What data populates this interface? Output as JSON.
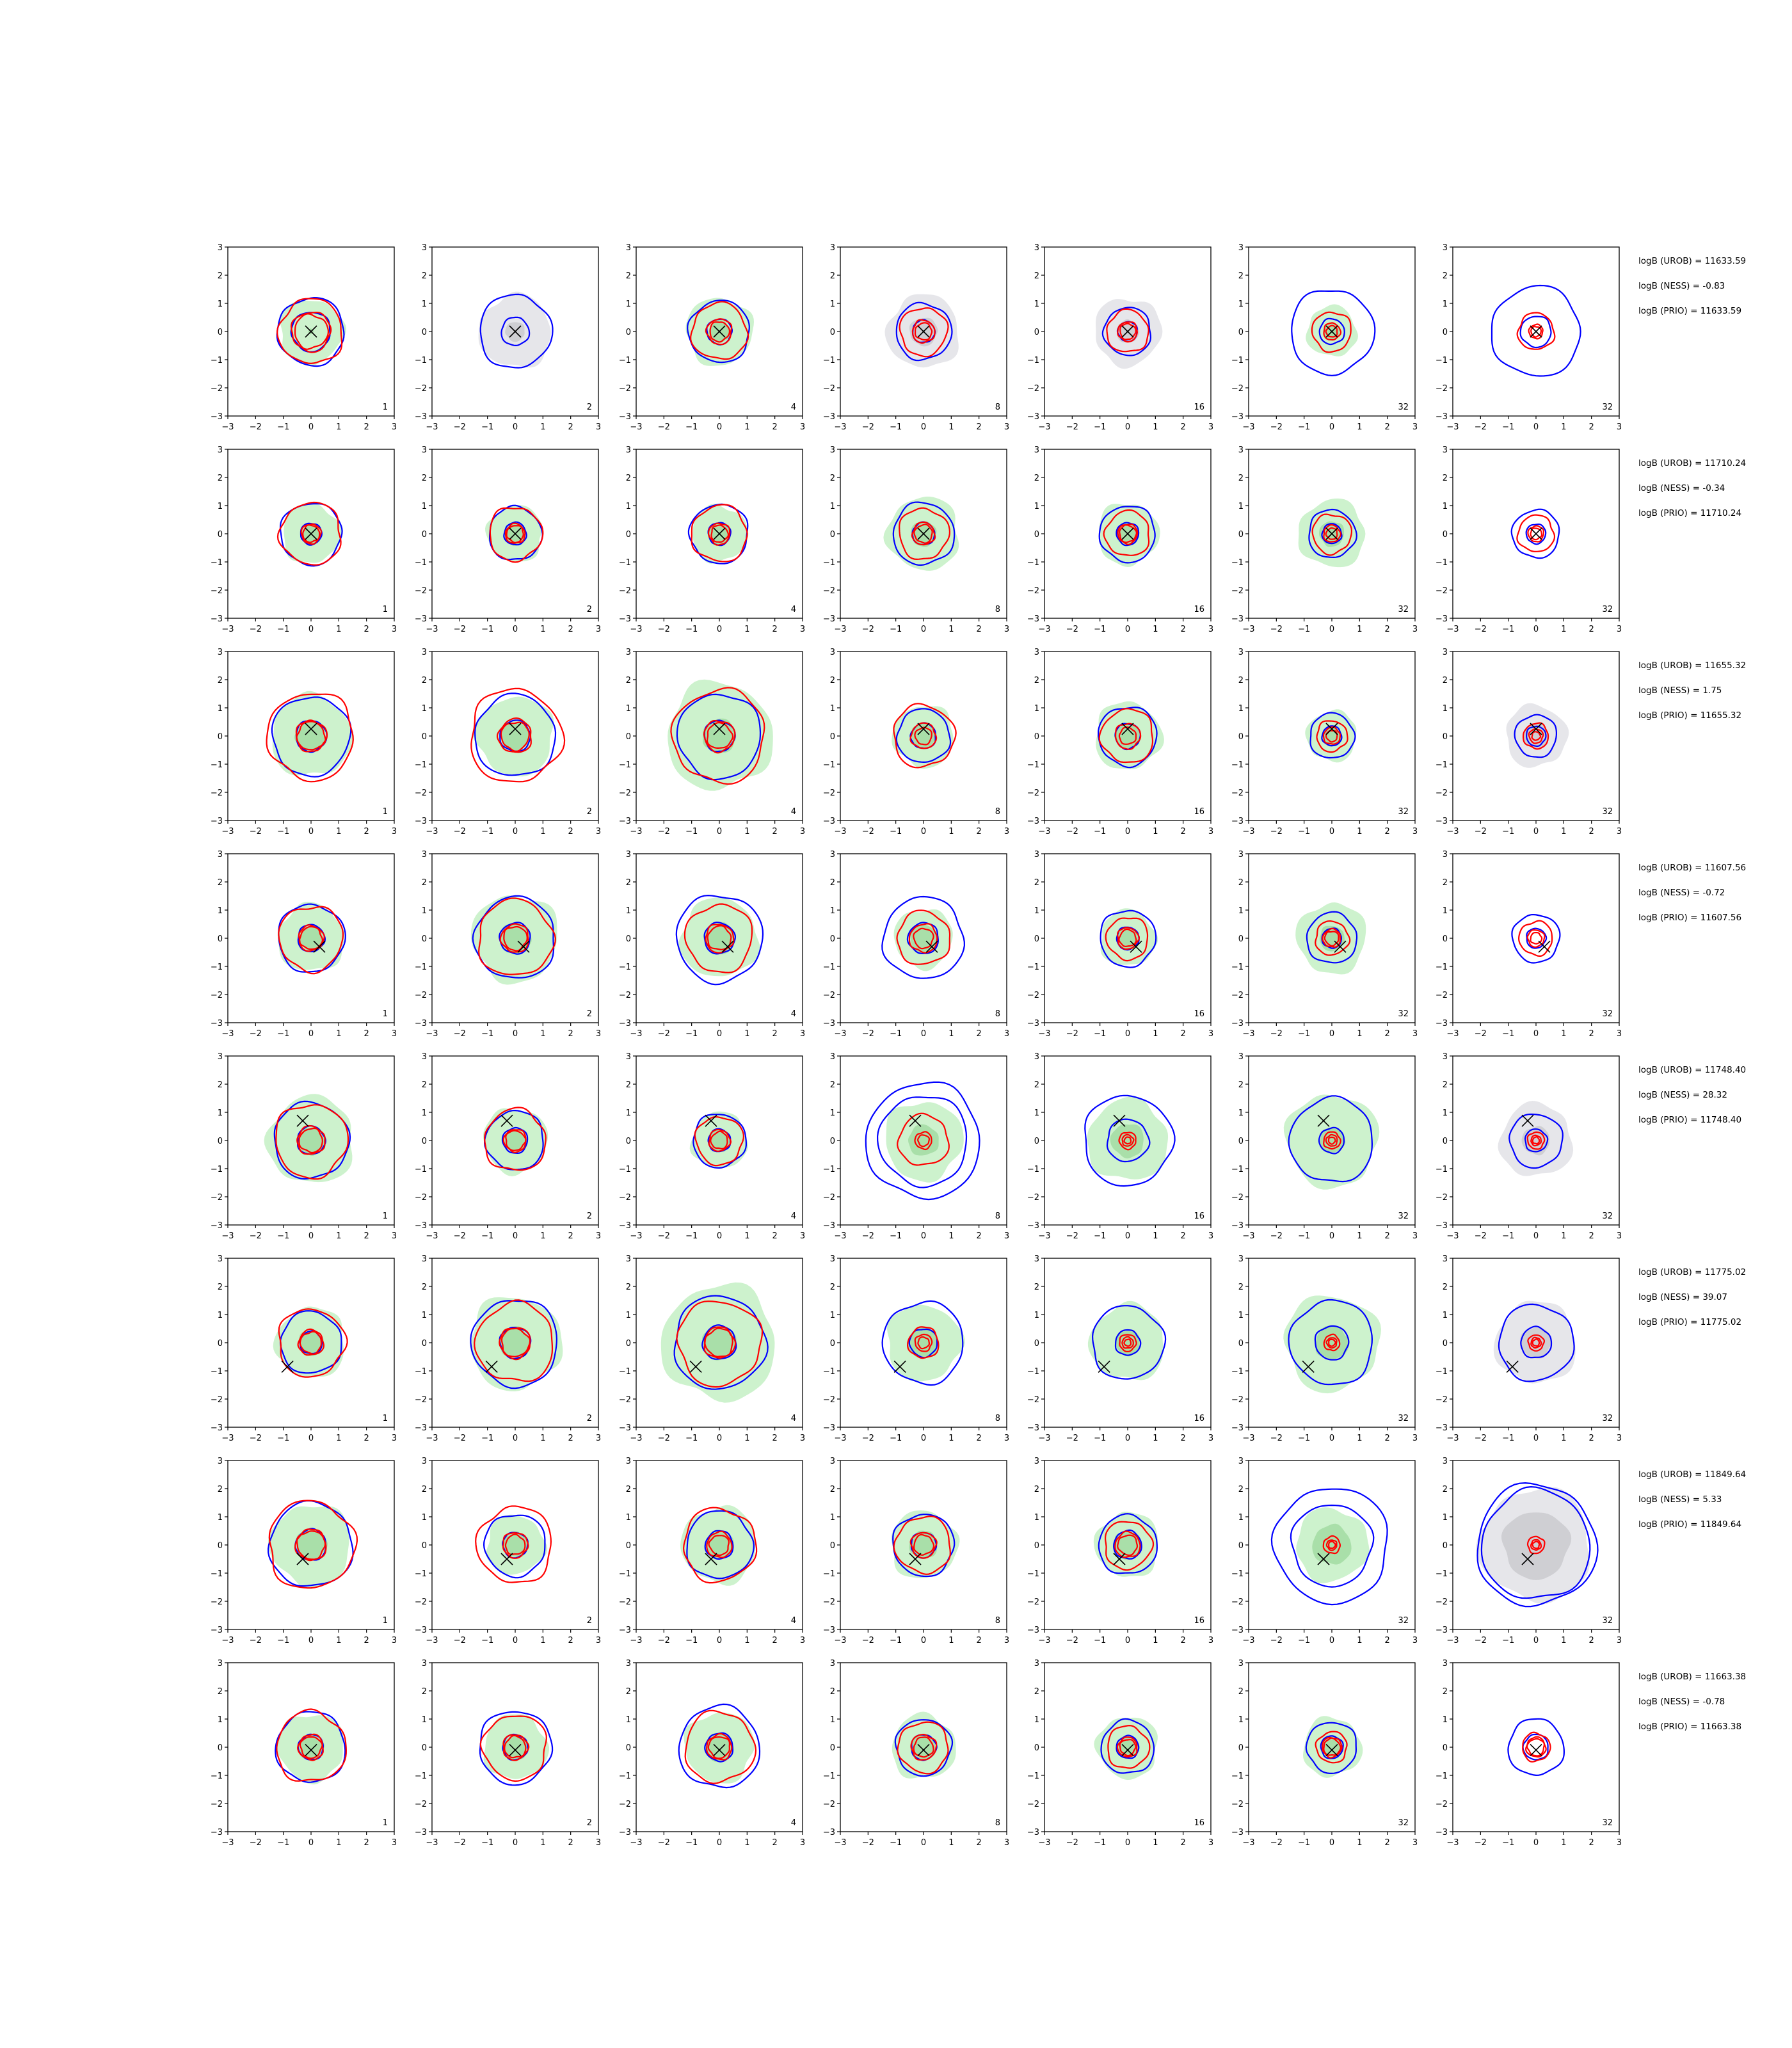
{
  "figure": {
    "columns": [
      "1",
      "2",
      "4",
      "8",
      "16",
      "32",
      "32"
    ]
  },
  "chart_data": {
    "type": "contour-grid",
    "rows": 8,
    "cols": 7,
    "xlim": [
      -3,
      3
    ],
    "ylim": [
      -3,
      3
    ],
    "ticks": [
      "−3",
      "−2",
      "−1",
      "0",
      "1",
      "2",
      "3"
    ],
    "tick_values": [
      -3,
      -2,
      -1,
      0,
      1,
      2,
      3
    ],
    "colors": {
      "blue": "#0000ff",
      "red": "#ff0000",
      "green_fill": "#cdf2cd",
      "green_core": "#a9dfa9",
      "gray_fill": "#e6e6ea",
      "gray_core": "#cfcfd3",
      "marker": "#000000"
    },
    "column_labels": [
      "1",
      "2",
      "4",
      "8",
      "16",
      "32",
      "32"
    ],
    "rows_data": [
      {
        "marker": [
          0,
          0
        ],
        "annotations": [
          "logB (UROB) = 11633.59",
          "logB (NESS) = -0.83",
          "logB (PRIO) = 11633.59"
        ],
        "panels": [
          {
            "fill": [
              1.15,
              0.1,
              0
            ],
            "blue": [
              1.2,
              0.7
            ],
            "red": [
              1.15,
              0.7,
              0.6
            ]
          },
          {
            "fill": [
              1.3,
              0.35,
              0.4
            ],
            "blue": [
              1.3,
              0.5
            ],
            "red": []
          },
          {
            "fill": [
              1.2,
              0.4,
              0
            ],
            "blue": [
              1.1,
              0.45
            ],
            "red": [
              1.0,
              0.45,
              0.35
            ]
          },
          {
            "fill": [
              1.3,
              0.5,
              0.1
            ],
            "blue": [
              1.0,
              0.4
            ],
            "red": [
              0.85,
              0.4,
              0.3
            ]
          },
          {
            "fill": [
              1.2,
              0.4,
              0.1
            ],
            "blue": [
              0.85,
              0.35
            ],
            "red": [
              0.75,
              0.35,
              0.28
            ]
          },
          {
            "fill": [
              0.9,
              0.3,
              0
            ],
            "blue": [
              1.5,
              0.45
            ],
            "red": [
              0.7,
              0.3,
              0.2
            ]
          },
          {
            "fill": [
              0,
              0,
              0
            ],
            "blue": [
              1.6,
              0.55
            ],
            "red": [
              0.65,
              0.25,
              0.18
            ]
          }
        ]
      },
      {
        "marker": [
          0,
          0
        ],
        "annotations": [
          "logB (UROB) = 11710.24",
          "logB (NESS) = -0.34",
          "logB (PRIO) = 11710.24"
        ],
        "panels": [
          {
            "fill": [
              1.05,
              0.35,
              0
            ],
            "blue": [
              1.1,
              0.38
            ],
            "red": [
              1.1,
              0.35,
              0.3
            ]
          },
          {
            "fill": [
              1.0,
              0.4,
              0
            ],
            "blue": [
              0.95,
              0.4
            ],
            "red": [
              0.95,
              0.35,
              0.3
            ]
          },
          {
            "fill": [
              1.0,
              0.4,
              0
            ],
            "blue": [
              1.05,
              0.4
            ],
            "red": [
              1.0,
              0.38,
              0.3
            ]
          },
          {
            "fill": [
              1.3,
              0.45,
              0
            ],
            "blue": [
              1.1,
              0.4
            ],
            "red": [
              0.9,
              0.4,
              0.32
            ]
          },
          {
            "fill": [
              1.1,
              0.4,
              0
            ],
            "blue": [
              1.0,
              0.4
            ],
            "red": [
              0.8,
              0.35,
              0.3
            ]
          },
          {
            "fill": [
              1.2,
              0.45,
              0
            ],
            "blue": [
              0.85,
              0.35
            ],
            "red": [
              0.7,
              0.3,
              0.2
            ]
          },
          {
            "fill": [
              0,
              0,
              0
            ],
            "blue": [
              0.85,
              0.35
            ],
            "red": [
              0.65,
              0.28,
              0.2
            ]
          }
        ]
      },
      {
        "marker": [
          0,
          0.25
        ],
        "annotations": [
          "logB (UROB) = 11655.32",
          "logB (NESS) = 1.75",
          "logB (PRIO) = 11655.32"
        ],
        "panels": [
          {
            "fill": [
              1.45,
              0.55,
              0
            ],
            "blue": [
              1.4,
              0.55
            ],
            "red": [
              1.55,
              0.55,
              0.5
            ]
          },
          {
            "fill": [
              1.4,
              0.5,
              0
            ],
            "blue": [
              1.45,
              0.55
            ],
            "red": [
              1.65,
              0.6,
              0.5
            ]
          },
          {
            "fill": [
              1.9,
              0.6,
              0
            ],
            "blue": [
              1.5,
              0.55
            ],
            "red": [
              1.65,
              0.55,
              0.45
            ]
          },
          {
            "fill": [
              1.1,
              0.45,
              0
            ],
            "blue": [
              0.95,
              0.45
            ],
            "red": [
              1.1,
              0.45,
              0.3
            ]
          },
          {
            "fill": [
              1.2,
              0.45,
              0
            ],
            "blue": [
              1.05,
              0.45
            ],
            "red": [
              0.95,
              0.45,
              0.3
            ]
          },
          {
            "fill": [
              0.9,
              0.35,
              0
            ],
            "blue": [
              0.8,
              0.35
            ],
            "red": [
              0.55,
              0.3,
              0.2
            ]
          },
          {
            "fill": [
              1.1,
              0.45,
              1
            ],
            "blue": [
              0.75,
              0.35
            ],
            "red": [
              0.45,
              0.25,
              0.15
            ]
          }
        ]
      },
      {
        "marker": [
          0.3,
          -0.3
        ],
        "annotations": [
          "logB (UROB) = 11607.56",
          "logB (NESS) = -0.72",
          "logB (PRIO) = 11607.56"
        ],
        "panels": [
          {
            "fill": [
              1.2,
              0.45,
              0
            ],
            "blue": [
              1.2,
              0.48
            ],
            "red": [
              1.15,
              0.45,
              0.4
            ]
          },
          {
            "fill": [
              1.55,
              0.55,
              0
            ],
            "blue": [
              1.45,
              0.55
            ],
            "red": [
              1.35,
              0.5,
              0.42
            ]
          },
          {
            "fill": [
              1.4,
              0.55,
              0
            ],
            "blue": [
              1.55,
              0.55
            ],
            "red": [
              1.2,
              0.5,
              0.42
            ]
          },
          {
            "fill": [
              1.05,
              0.5,
              0
            ],
            "blue": [
              1.45,
              0.55
            ],
            "red": [
              0.95,
              0.5,
              0.35
            ]
          },
          {
            "fill": [
              1.0,
              0.4,
              0
            ],
            "blue": [
              1.0,
              0.4
            ],
            "red": [
              0.75,
              0.38,
              0.3
            ]
          },
          {
            "fill": [
              1.25,
              0.45,
              0
            ],
            "blue": [
              0.9,
              0.35
            ],
            "red": [
              0.6,
              0.32,
              0.25
            ]
          },
          {
            "fill": [
              0,
              0,
              0
            ],
            "blue": [
              0.85,
              0.35
            ],
            "red": [
              0.6,
              0.3,
              0.2
            ]
          }
        ]
      },
      {
        "marker": [
          -0.3,
          0.7
        ],
        "annotations": [
          "logB (UROB) = 11748.40",
          "logB (NESS) = 28.32",
          "logB (PRIO) = 11748.40"
        ],
        "panels": [
          {
            "fill": [
              1.55,
              0.5,
              0
            ],
            "blue": [
              1.35,
              0.5
            ],
            "red": [
              1.3,
              0.5,
              0.42
            ]
          },
          {
            "fill": [
              1.15,
              0.4,
              0
            ],
            "blue": [
              1.05,
              0.45
            ],
            "red": [
              1.1,
              0.4,
              0.35
            ]
          },
          {
            "fill": [
              1.0,
              0.4,
              0
            ],
            "blue": [
              0.95,
              0.4
            ],
            "red": [
              0.85,
              0.38,
              0.3
            ]
          },
          {
            "fill": [
              1.4,
              0.55,
              0
            ],
            "blue": [
              2.05,
              1.6
            ],
            "red": [
              0.9,
              0.3,
              0.2
            ]
          },
          {
            "fill": [
              1.45,
              0.6,
              0
            ],
            "blue": [
              1.6,
              0.75
            ],
            "red": [
              0.3,
              0.2,
              0.12
            ]
          },
          {
            "fill": [
              1.65,
              0.45,
              0
            ],
            "blue": [
              1.5,
              0.45
            ],
            "red": [
              0.3,
              0.2,
              0.12
            ]
          },
          {
            "fill": [
              1.3,
              0.5,
              1
            ],
            "blue": [
              0.95,
              0.4
            ],
            "red": [
              0.3,
              0.18,
              0.12
            ]
          }
        ]
      },
      {
        "marker": [
          -0.85,
          -0.85
        ],
        "annotations": [
          "logB (UROB) = 11775.02",
          "logB (NESS) = 39.07",
          "logB (PRIO) = 11775.02"
        ],
        "panels": [
          {
            "fill": [
              1.25,
              0.45,
              0
            ],
            "blue": [
              1.1,
              0.4
            ],
            "red": [
              1.2,
              0.45,
              0.38
            ]
          },
          {
            "fill": [
              1.65,
              0.55,
              0
            ],
            "blue": [
              1.55,
              0.55
            ],
            "red": [
              1.4,
              0.55,
              0.5
            ]
          },
          {
            "fill": [
              2.05,
              0.6,
              0
            ],
            "blue": [
              1.65,
              0.6
            ],
            "red": [
              1.5,
              0.55,
              0.5
            ]
          },
          {
            "fill": [
              1.35,
              0.55,
              0
            ],
            "blue": [
              1.45,
              0.5
            ],
            "red": [
              0.55,
              0.3,
              0.2
            ]
          },
          {
            "fill": [
              1.35,
              0.45,
              0
            ],
            "blue": [
              1.3,
              0.45
            ],
            "red": [
              0.3,
              0.2,
              0.12
            ]
          },
          {
            "fill": [
              1.7,
              0.6,
              0
            ],
            "blue": [
              1.5,
              0.6
            ],
            "red": [
              0.28,
              0.18,
              0.12
            ]
          },
          {
            "fill": [
              1.45,
              0.55,
              1
            ],
            "blue": [
              1.35,
              0.55
            ],
            "red": [
              0.28,
              0.18,
              0.12
            ]
          }
        ]
      },
      {
        "marker": [
          -0.3,
          -0.5
        ],
        "annotations": [
          "logB (UROB) = 11849.64",
          "logB (NESS) = 5.33",
          "logB (PRIO) = 11849.64"
        ],
        "panels": [
          {
            "fill": [
              1.45,
              0.55,
              0
            ],
            "blue": [
              1.5,
              0.55
            ],
            "red": [
              1.55,
              0.55,
              0.5
            ]
          },
          {
            "fill": [
              1.05,
              0.45,
              0
            ],
            "blue": [
              1.1,
              0.45
            ],
            "red": [
              1.35,
              0.45,
              0.35
            ]
          },
          {
            "fill": [
              1.35,
              0.5,
              0
            ],
            "blue": [
              1.2,
              0.5
            ],
            "red": [
              1.3,
              0.45,
              0.35
            ]
          },
          {
            "fill": [
              1.2,
              0.5,
              0
            ],
            "blue": [
              1.1,
              0.45
            ],
            "red": [
              1.0,
              0.45,
              0.35
            ]
          },
          {
            "fill": [
              1.15,
              0.5,
              0
            ],
            "blue": [
              1.05,
              0.5
            ],
            "red": [
              0.85,
              0.45,
              0.35
            ]
          },
          {
            "fill": [
              1.3,
              0.7,
              0
            ],
            "blue": [
              2.05,
              1.45
            ],
            "red": [
              0.3,
              0.18,
              0.12
            ]
          },
          {
            "fill": [
              2.0,
              1.2,
              1
            ],
            "blue": [
              2.15,
              1.95
            ],
            "red": [
              0.3,
              0.18,
              0.12
            ]
          }
        ]
      },
      {
        "marker": [
          0,
          -0.1
        ],
        "annotations": [
          "logB (UROB) = 11663.38",
          "logB (NESS) = -0.78",
          "logB (PRIO) = 11663.38"
        ],
        "panels": [
          {
            "fill": [
              1.2,
              0.45,
              0
            ],
            "blue": [
              1.25,
              0.45
            ],
            "red": [
              1.25,
              0.45,
              0.38
            ]
          },
          {
            "fill": [
              1.15,
              0.45,
              0
            ],
            "blue": [
              1.3,
              0.45
            ],
            "red": [
              1.15,
              0.45,
              0.38
            ]
          },
          {
            "fill": [
              1.25,
              0.5,
              0
            ],
            "blue": [
              1.45,
              0.5
            ],
            "red": [
              1.25,
              0.45,
              0.38
            ]
          },
          {
            "fill": [
              1.15,
              0.45,
              0
            ],
            "blue": [
              1.0,
              0.45
            ],
            "red": [
              0.9,
              0.45,
              0.35
            ]
          },
          {
            "fill": [
              1.1,
              0.4,
              0
            ],
            "blue": [
              0.95,
              0.4
            ],
            "red": [
              0.75,
              0.35,
              0.28
            ]
          },
          {
            "fill": [
              1.05,
              0.4,
              0
            ],
            "blue": [
              0.9,
              0.4
            ],
            "red": [
              0.55,
              0.35,
              0.3
            ]
          },
          {
            "fill": [
              0,
              0,
              0
            ],
            "blue": [
              1.0,
              0.45
            ],
            "red": [
              0.5,
              0.35,
              0.3
            ]
          }
        ]
      }
    ]
  }
}
